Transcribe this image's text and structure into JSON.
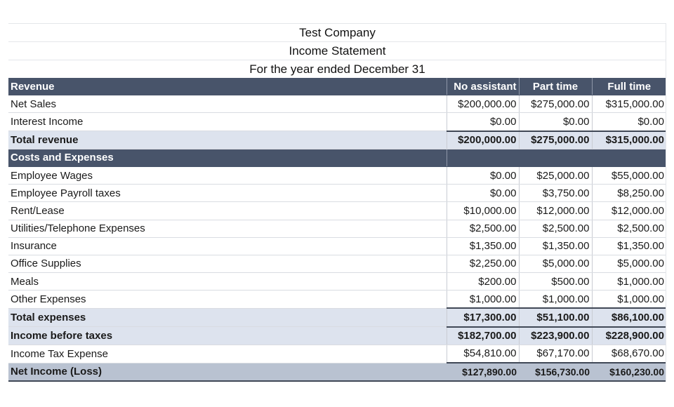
{
  "header": {
    "company": "Test Company",
    "statement": "Income Statement",
    "period": "For the year ended December 31"
  },
  "columns": {
    "section_label": "Revenue",
    "scenarios": [
      "No assistant",
      "Part time",
      "Full time"
    ]
  },
  "revenue": {
    "rows": [
      {
        "label": "Net Sales",
        "values": [
          "$200,000.00",
          "$275,000.00",
          "$315,000.00"
        ]
      },
      {
        "label": "Interest Income",
        "values": [
          "$0.00",
          "$0.00",
          "$0.00"
        ]
      }
    ],
    "total": {
      "label": "Total revenue",
      "values": [
        "$200,000.00",
        "$275,000.00",
        "$315,000.00"
      ]
    }
  },
  "expenses": {
    "section_label": "Costs and Expenses",
    "rows": [
      {
        "label": "Employee Wages",
        "values": [
          "$0.00",
          "$25,000.00",
          "$55,000.00"
        ]
      },
      {
        "label": "Employee Payroll taxes",
        "values": [
          "$0.00",
          "$3,750.00",
          "$8,250.00"
        ]
      },
      {
        "label": "Rent/Lease",
        "values": [
          "$10,000.00",
          "$12,000.00",
          "$12,000.00"
        ]
      },
      {
        "label": "Utilities/Telephone Expenses",
        "values": [
          "$2,500.00",
          "$2,500.00",
          "$2,500.00"
        ]
      },
      {
        "label": "Insurance",
        "values": [
          "$1,350.00",
          "$1,350.00",
          "$1,350.00"
        ]
      },
      {
        "label": "Office Supplies",
        "values": [
          "$2,250.00",
          "$5,000.00",
          "$5,000.00"
        ]
      },
      {
        "label": "Meals",
        "values": [
          "$200.00",
          "$500.00",
          "$1,000.00"
        ]
      },
      {
        "label": "Other Expenses",
        "values": [
          "$1,000.00",
          "$1,000.00",
          "$1,000.00"
        ]
      }
    ],
    "total": {
      "label": "Total expenses",
      "values": [
        "$17,300.00",
        "$51,100.00",
        "$86,100.00"
      ]
    }
  },
  "summary": {
    "income_before_taxes": {
      "label": "Income before taxes",
      "values": [
        "$182,700.00",
        "$223,900.00",
        "$228,900.00"
      ]
    },
    "income_tax": {
      "label": "Income Tax Expense",
      "values": [
        "$54,810.00",
        "$67,170.00",
        "$68,670.00"
      ]
    },
    "net_income": {
      "label": "Net Income (Loss)",
      "values": [
        "$127,890.00",
        "$156,730.00",
        "$160,230.00"
      ]
    }
  },
  "colors": {
    "header_bar": "#48546a",
    "total_row": "#dde3ee",
    "net_income_row": "#b9c2d1"
  }
}
